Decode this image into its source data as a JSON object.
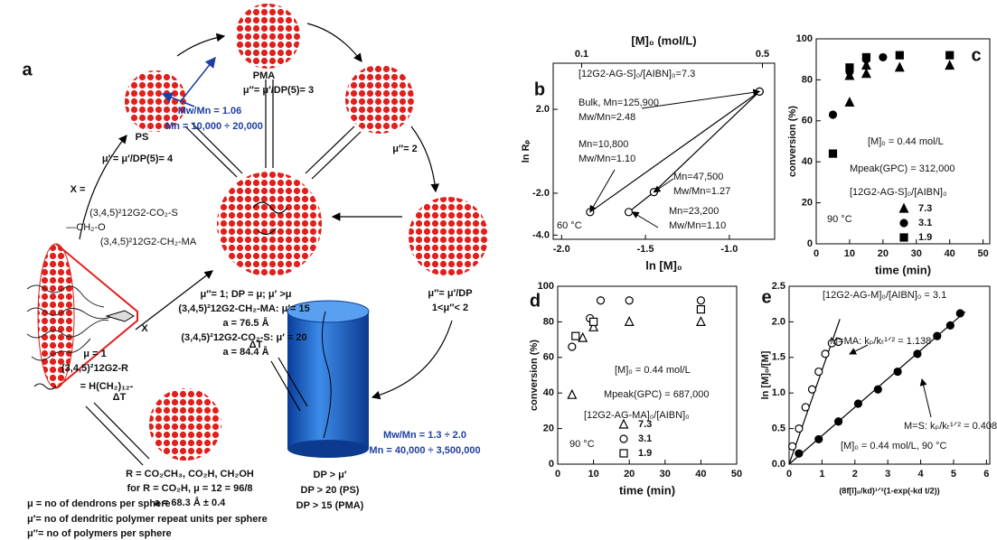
{
  "figure_a": {
    "panel": "a",
    "texts": [
      "PS",
      "PMA",
      "μ″= μ′/DP(5)= 3",
      "μ″= μ′/DP(5)= 4",
      "Mw/Mn = 1.06",
      "Mn = 10,000 ÷ 20,000",
      "μ″= 2",
      "X =",
      "(3,4,5)²12G2-CO₂-S",
      "—CH₂-O",
      "(3,4,5)²12G2-CH₂-MA",
      "X",
      "μ = 1",
      "(3,4,5)²12G2-R",
      "= H(CH₂)₁₂-",
      "μ″= 1; DP = μ; μ′ >μ",
      "(3,4,5)²12G2-CH₂-MA: μ′= 15",
      "a = 76.5 Å",
      "(3,4,5)²12G2-CO₂-S: μ′ = 20",
      "a = 84.4 Å",
      "μ″= μ′/DP",
      "1<μ″< 2",
      "ΔT",
      "ΔT",
      "R = CO₂CH₃, CO₂H, CH₂OH",
      "for R = CO₂H,  μ = 12 = 96/8",
      "a = 68.3 Å ± 0.4",
      "Mw/Mn = 1.3 ÷ 2.0",
      "Mn = 40,000 ÷ 3,500,000",
      "DP > μ′",
      "DP > 20 (PS)",
      "DP > 15 (PMA)",
      "μ = no of dendrons per sphere",
      "μ′= no of dendritic polymer repeat units per sphere",
      "μ″= no of polymers per sphere"
    ]
  },
  "chart_data": [
    {
      "panel": "b",
      "type": "line",
      "xlabel": "ln [M]₀",
      "ylabel": "ln Rₚ",
      "x2label": "[M]₀ (mol/L)",
      "xlim": [
        -2.05,
        -0.73
      ],
      "xticks": [
        {
          "value": -2,
          "label": "-2.0"
        },
        -1.5,
        {
          "value": -1,
          "label": "-1.0"
        }
      ],
      "x2lim": [
        0.037,
        0.527
      ],
      "x2ticks": [
        0.1,
        0.5
      ],
      "ylim": [
        -4.2,
        4.2
      ],
      "yticks": [
        {
          "value": -4,
          "label": "-4.0"
        },
        {
          "value": -2,
          "label": "-2.0"
        },
        {
          "value": 2,
          "label": "2.0"
        }
      ],
      "series": [
        {
          "color": "#000",
          "marker": "circle",
          "filled": false,
          "x": [
            -1.83,
            -0.82
          ],
          "values": [
            -2.9,
            2.85
          ]
        },
        {
          "color": "#000",
          "marker": "circle",
          "filled": false,
          "x": [
            -1.6,
            -1.45,
            -0.82
          ],
          "values": [
            -2.9,
            -1.95,
            2.85
          ]
        }
      ],
      "annotations": [
        "[12G2-AG-S]₀/[AIBN]₀=7.3",
        "Bulk, Mn=125,900",
        "Mw/Mn=2.48",
        "Mn=10,800",
        "Mw/Mn=1.10",
        "Mn=47,500",
        "Mw/Mn=1.27",
        "Mn=23,200",
        "Mw/Mn=1.10",
        "60 °C"
      ]
    },
    {
      "panel": "c",
      "type": "scatter",
      "xlabel": "time (min)",
      "ylabel": "conversion (%)",
      "xlim": [
        0,
        52
      ],
      "xticks": [
        0,
        10,
        20,
        30,
        40,
        50
      ],
      "ylim": [
        0,
        100
      ],
      "yticks": [
        0,
        20,
        40,
        60,
        80,
        100
      ],
      "series": [
        {
          "name": "7.3",
          "color": "#000",
          "marker": "triangle",
          "filled": true,
          "x": [
            10,
            10,
            15,
            15,
            25,
            40
          ],
          "values": [
            69,
            82,
            83,
            87,
            86,
            87
          ]
        },
        {
          "name": "3.1",
          "color": "#000",
          "marker": "circle",
          "filled": true,
          "x": [
            5,
            10,
            15,
            20
          ],
          "values": [
            63,
            84,
            90,
            91
          ]
        },
        {
          "name": "1.9",
          "color": "#000",
          "marker": "square",
          "filled": true,
          "x": [
            5,
            10,
            15,
            25,
            40
          ],
          "values": [
            44,
            86,
            91,
            92,
            92
          ]
        }
      ],
      "annotations": [
        "[M]₀ = 0.44 mol/L",
        "Mpeak(GPC) = 312,000",
        "[12G2-AG-S]₀/[AIBN]₀",
        "90 °C"
      ]
    },
    {
      "panel": "d",
      "type": "scatter",
      "xlabel": "time (min)",
      "ylabel": "conversion (%)",
      "xlim": [
        0,
        50
      ],
      "xticks": [
        0,
        10,
        20,
        30,
        40,
        50
      ],
      "ylim": [
        0,
        100
      ],
      "yticks": [
        0,
        20,
        40,
        60,
        80,
        100
      ],
      "series": [
        {
          "name": "7.3",
          "color": "#000",
          "marker": "triangle",
          "filled": false,
          "x": [
            4,
            7,
            10,
            20,
            40
          ],
          "values": [
            39,
            71,
            77,
            80,
            80
          ]
        },
        {
          "name": "3.1",
          "color": "#000",
          "marker": "circle",
          "filled": false,
          "x": [
            4,
            9,
            12,
            20,
            40
          ],
          "values": [
            66,
            82,
            92,
            92,
            92
          ]
        },
        {
          "name": "1.9",
          "color": "#000",
          "marker": "square",
          "filled": false,
          "x": [
            5,
            10,
            40
          ],
          "values": [
            72,
            80,
            87
          ]
        }
      ],
      "annotations": [
        "[M]₀ = 0.44 mol/L",
        "Mpeak(GPC) = 687,000",
        "[12G2-AG-MA]₀/[AIBN]₀",
        "90 °C"
      ]
    },
    {
      "panel": "e",
      "type": "scatter",
      "trendline": true,
      "xlabel": "(8f[I]₀/kd)¹ᐟ²(1-exp(-kd t/2))",
      "ylabel": "ln [M]₀/[M]",
      "xlim": [
        0,
        6.1
      ],
      "xticks": [
        0,
        1,
        2,
        3,
        4,
        5,
        6
      ],
      "ylim": [
        0,
        2.5
      ],
      "yticks": [
        {
          "value": 0,
          "label": "0.0"
        },
        0.5,
        {
          "value": 1,
          "label": "1.0"
        },
        1.5,
        {
          "value": 2,
          "label": "2.0"
        },
        2.5
      ],
      "series": [
        {
          "color": "#000",
          "marker": "circle",
          "filled": false,
          "x": [
            0.1,
            0.3,
            0.5,
            0.7,
            0.9,
            1.1,
            1.3,
            1.5
          ],
          "values": [
            0.25,
            0.5,
            0.8,
            1.05,
            1.3,
            1.55,
            1.7,
            1.72
          ]
        },
        {
          "color": "#000",
          "marker": "circle",
          "filled": true,
          "x": [
            0.3,
            0.9,
            1.5,
            2.1,
            2.7,
            3.3,
            3.9,
            4.5,
            4.9,
            5.2
          ],
          "values": [
            0.15,
            0.35,
            0.6,
            0.85,
            1.05,
            1.3,
            1.55,
            1.8,
            1.95,
            2.12
          ]
        }
      ],
      "annotations": [
        "[12G2-AG-M]₀/[AIBN]₀ = 3.1",
        "M=MA:  kₚ/kₜ¹ᐟ² = 1.138",
        "M=S:  kₚ/kₜ¹ᐟ² = 0.408",
        "[M]₀ = 0.44 mol/L, 90 °C"
      ]
    }
  ]
}
